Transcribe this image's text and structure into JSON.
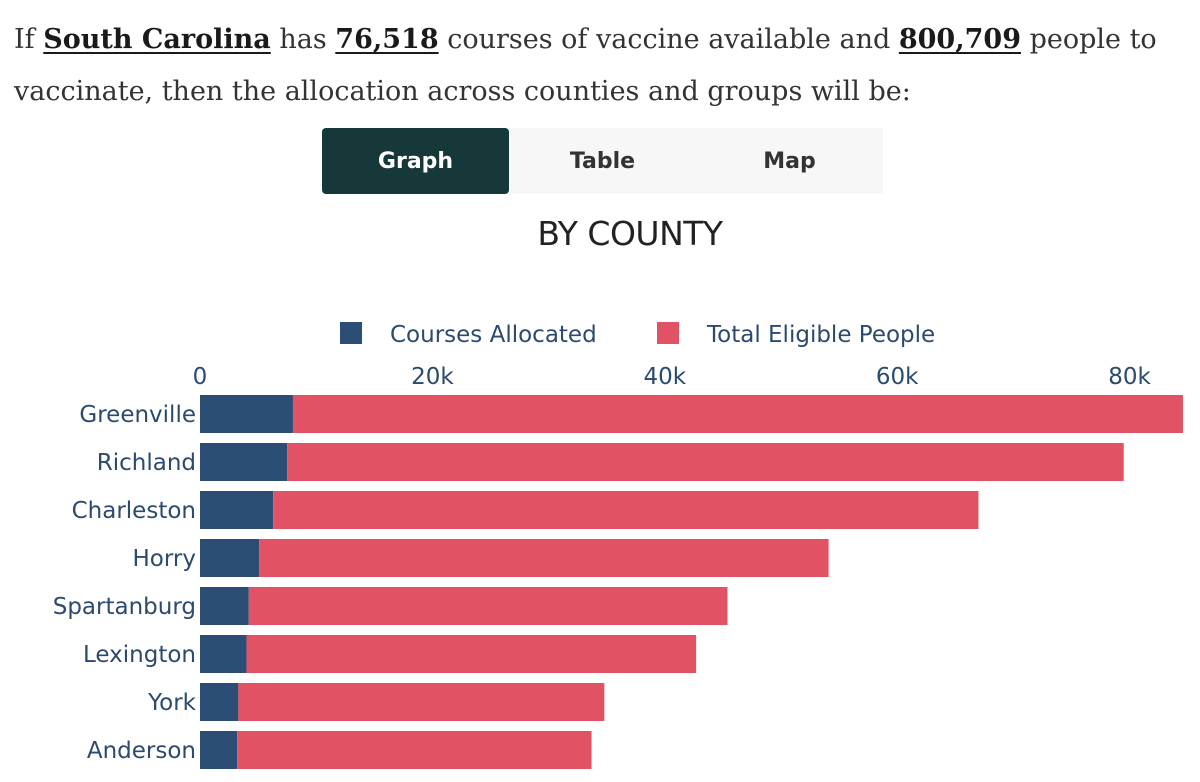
{
  "intro": {
    "prefix": "If",
    "state": "South Carolina",
    "has": "has",
    "courses": "76,518",
    "middle": "courses of vaccine available and",
    "people": "800,709",
    "suffix": "people to vaccinate, then the allocation across counties and groups will be:"
  },
  "tabs": [
    {
      "label": "Graph",
      "active": true
    },
    {
      "label": "Table",
      "active": false
    },
    {
      "label": "Map",
      "active": false
    }
  ],
  "chart_data": {
    "type": "bar",
    "orientation": "horizontal",
    "stacked": true,
    "title": "BY COUNTY",
    "categories": [
      "Greenville",
      "Richland",
      "Charleston",
      "Horry",
      "Spartanburg",
      "Lexington",
      "York",
      "Anderson"
    ],
    "series": [
      {
        "name": "Courses Allocated",
        "color": "#2d4e74",
        "values": [
          8000,
          7500,
          6300,
          5100,
          4200,
          4000,
          3300,
          3200
        ]
      },
      {
        "name": "Total Eligible People",
        "color": "#e05264",
        "values": [
          76600,
          72000,
          60700,
          49000,
          41200,
          38700,
          31500,
          30500
        ]
      }
    ],
    "xticks": [
      "0",
      "20k",
      "40k",
      "60k",
      "80k"
    ],
    "xtick_values": [
      0,
      20000,
      40000,
      60000,
      80000
    ],
    "xlim": [
      0,
      84000
    ],
    "legend_position": "top",
    "grid": false
  }
}
